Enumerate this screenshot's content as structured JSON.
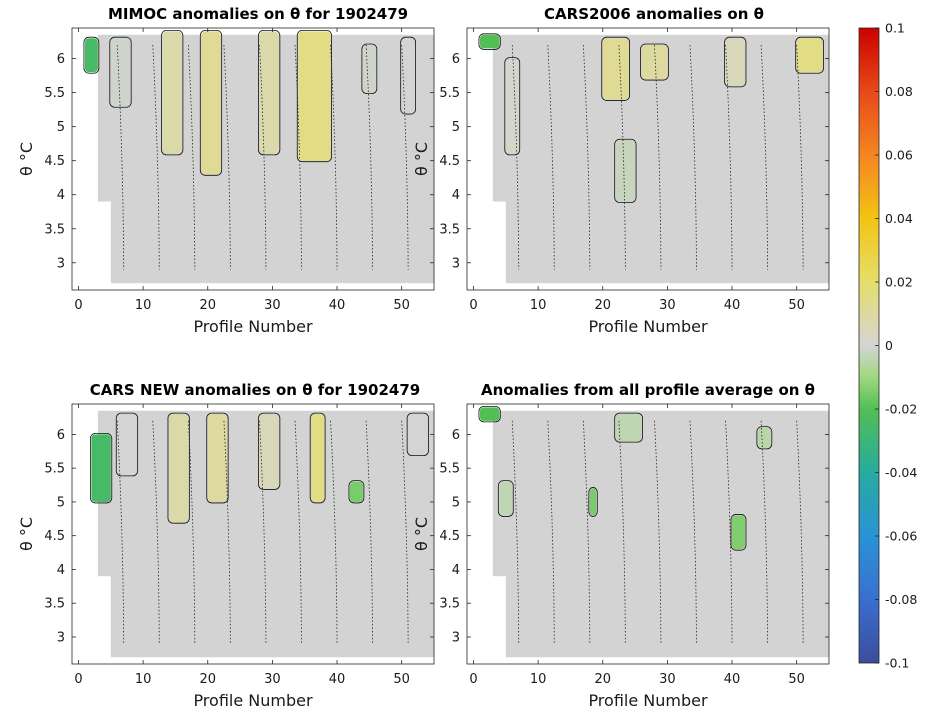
{
  "figure": {
    "colorbar": {
      "min": -0.1,
      "max": 0.1,
      "tick_values": [
        -0.1,
        -0.08,
        -0.06,
        -0.04,
        -0.02,
        0,
        0.02,
        0.04,
        0.06,
        0.08,
        0.1
      ],
      "tick_labels": [
        "-0.1",
        "-0.08",
        "-0.06",
        "-0.04",
        "-0.02",
        "0",
        "0.02",
        "0.04",
        "0.06",
        "0.08",
        "0.1"
      ],
      "colormap": "parula-like",
      "colors": [
        "#3b4d9c",
        "#3a6fd0",
        "#2a93d6",
        "#27ab9e",
        "#52bf55",
        "#9fd87e",
        "#d4d4d4",
        "#e6de6a",
        "#f2c413",
        "#f58523",
        "#cc0000"
      ]
    }
  },
  "chart_data": [
    {
      "type": "heatmap",
      "title": "MIMOC anomalies on θ  for 1902479",
      "xlabel": "Profile Number",
      "ylabel": "θ °C",
      "xlim": [
        -1,
        55
      ],
      "ylim": [
        2.6,
        6.45
      ],
      "x_ticks": [
        0,
        10,
        20,
        30,
        40,
        50
      ],
      "y_ticks": [
        3,
        3.5,
        4,
        4.5,
        5,
        5.5,
        6
      ],
      "y_tick_labels": [
        "3",
        "3.5",
        "4",
        "4.5",
        "5",
        "5.5",
        "6"
      ],
      "bands": [
        {
          "x0": 1,
          "x1": 3,
          "y0": 5.8,
          "y1": 6.3,
          "value": -0.025
        },
        {
          "x0": 5,
          "x1": 8,
          "y0": 5.3,
          "y1": 6.3,
          "value": 0.018
        },
        {
          "x0": 13,
          "x1": 16,
          "y0": 4.6,
          "y1": 6.4,
          "value": 0.028
        },
        {
          "x0": 19,
          "x1": 22,
          "y0": 4.3,
          "y1": 6.4,
          "value": 0.032
        },
        {
          "x0": 28,
          "x1": 31,
          "y0": 4.6,
          "y1": 6.4,
          "value": 0.028
        },
        {
          "x0": 34,
          "x1": 39,
          "y0": 4.5,
          "y1": 6.4,
          "value": 0.035
        },
        {
          "x0": 44,
          "x1": 46,
          "y0": 5.5,
          "y1": 6.2,
          "value": 0.018
        },
        {
          "x0": 50,
          "x1": 52,
          "y0": 5.2,
          "y1": 6.3,
          "value": 0.02
        }
      ]
    },
    {
      "type": "heatmap",
      "title": "CARS2006 anomalies on θ",
      "xlabel": "Profile Number",
      "ylabel": "θ °C",
      "xlim": [
        -1,
        55
      ],
      "ylim": [
        2.6,
        6.45
      ],
      "x_ticks": [
        0,
        10,
        20,
        30,
        40,
        50
      ],
      "y_ticks": [
        3,
        3.5,
        4,
        4.5,
        5,
        5.5,
        6
      ],
      "y_tick_labels": [
        "3",
        "3.5",
        "4",
        "4.5",
        "5",
        "5.5",
        "6"
      ],
      "bands": [
        {
          "x0": 1,
          "x1": 4,
          "y0": 6.15,
          "y1": 6.35,
          "value": -0.02
        },
        {
          "x0": 5,
          "x1": 7,
          "y0": 4.6,
          "y1": 6.0,
          "value": 0.022
        },
        {
          "x0": 20,
          "x1": 24,
          "y0": 5.4,
          "y1": 6.3,
          "value": 0.032
        },
        {
          "x0": 26,
          "x1": 30,
          "y0": 5.7,
          "y1": 6.2,
          "value": 0.03
        },
        {
          "x0": 39,
          "x1": 42,
          "y0": 5.6,
          "y1": 6.3,
          "value": 0.025
        },
        {
          "x0": 50,
          "x1": 54,
          "y0": 5.8,
          "y1": 6.3,
          "value": 0.035
        },
        {
          "x0": 22,
          "x1": 25,
          "y0": 3.9,
          "y1": 4.8,
          "value": 0.015
        }
      ]
    },
    {
      "type": "heatmap",
      "title": "CARS NEW anomalies on θ for 1902479",
      "xlabel": "Profile Number",
      "ylabel": "θ °C",
      "xlim": [
        -1,
        55
      ],
      "ylim": [
        2.6,
        6.45
      ],
      "x_ticks": [
        0,
        10,
        20,
        30,
        40,
        50
      ],
      "y_ticks": [
        3,
        3.5,
        4,
        4.5,
        5,
        5.5,
        6
      ],
      "y_tick_labels": [
        "3",
        "3.5",
        "4",
        "4.5",
        "5",
        "5.5",
        "6"
      ],
      "bands": [
        {
          "x0": 2,
          "x1": 5,
          "y0": 5.0,
          "y1": 6.0,
          "value": -0.025
        },
        {
          "x0": 6,
          "x1": 9,
          "y0": 5.4,
          "y1": 6.3,
          "value": 0.02
        },
        {
          "x0": 14,
          "x1": 17,
          "y0": 4.7,
          "y1": 6.3,
          "value": 0.028
        },
        {
          "x0": 20,
          "x1": 23,
          "y0": 5.0,
          "y1": 6.3,
          "value": 0.03
        },
        {
          "x0": 28,
          "x1": 31,
          "y0": 5.2,
          "y1": 6.3,
          "value": 0.025
        },
        {
          "x0": 36,
          "x1": 38,
          "y0": 5.0,
          "y1": 6.3,
          "value": 0.035
        },
        {
          "x0": 51,
          "x1": 54,
          "y0": 5.7,
          "y1": 6.3,
          "value": 0.02
        },
        {
          "x0": 42,
          "x1": 44,
          "y0": 5.0,
          "y1": 5.3,
          "value": -0.01
        }
      ]
    },
    {
      "type": "heatmap",
      "title": "Anomalies from all profile average on θ",
      "xlabel": "Profile Number",
      "ylabel": "θ °C",
      "xlim": [
        -1,
        55
      ],
      "ylim": [
        2.6,
        6.45
      ],
      "x_ticks": [
        0,
        10,
        20,
        30,
        40,
        50
      ],
      "y_ticks": [
        3,
        3.5,
        4,
        4.5,
        5,
        5.5,
        6
      ],
      "y_tick_labels": [
        "3",
        "3.5",
        "4",
        "4.5",
        "5",
        "5.5",
        "6"
      ],
      "bands": [
        {
          "x0": 1,
          "x1": 4,
          "y0": 6.2,
          "y1": 6.4,
          "value": -0.02
        },
        {
          "x0": 22,
          "x1": 26,
          "y0": 5.9,
          "y1": 6.3,
          "value": 0.012
        },
        {
          "x0": 4,
          "x1": 6,
          "y0": 4.8,
          "y1": 5.3,
          "value": 0.012
        },
        {
          "x0": 18,
          "x1": 19,
          "y0": 4.8,
          "y1": 5.2,
          "value": -0.01
        },
        {
          "x0": 40,
          "x1": 42,
          "y0": 4.3,
          "y1": 4.8,
          "value": -0.008
        },
        {
          "x0": 44,
          "x1": 46,
          "y0": 5.8,
          "y1": 6.1,
          "value": 0.01
        }
      ]
    }
  ]
}
